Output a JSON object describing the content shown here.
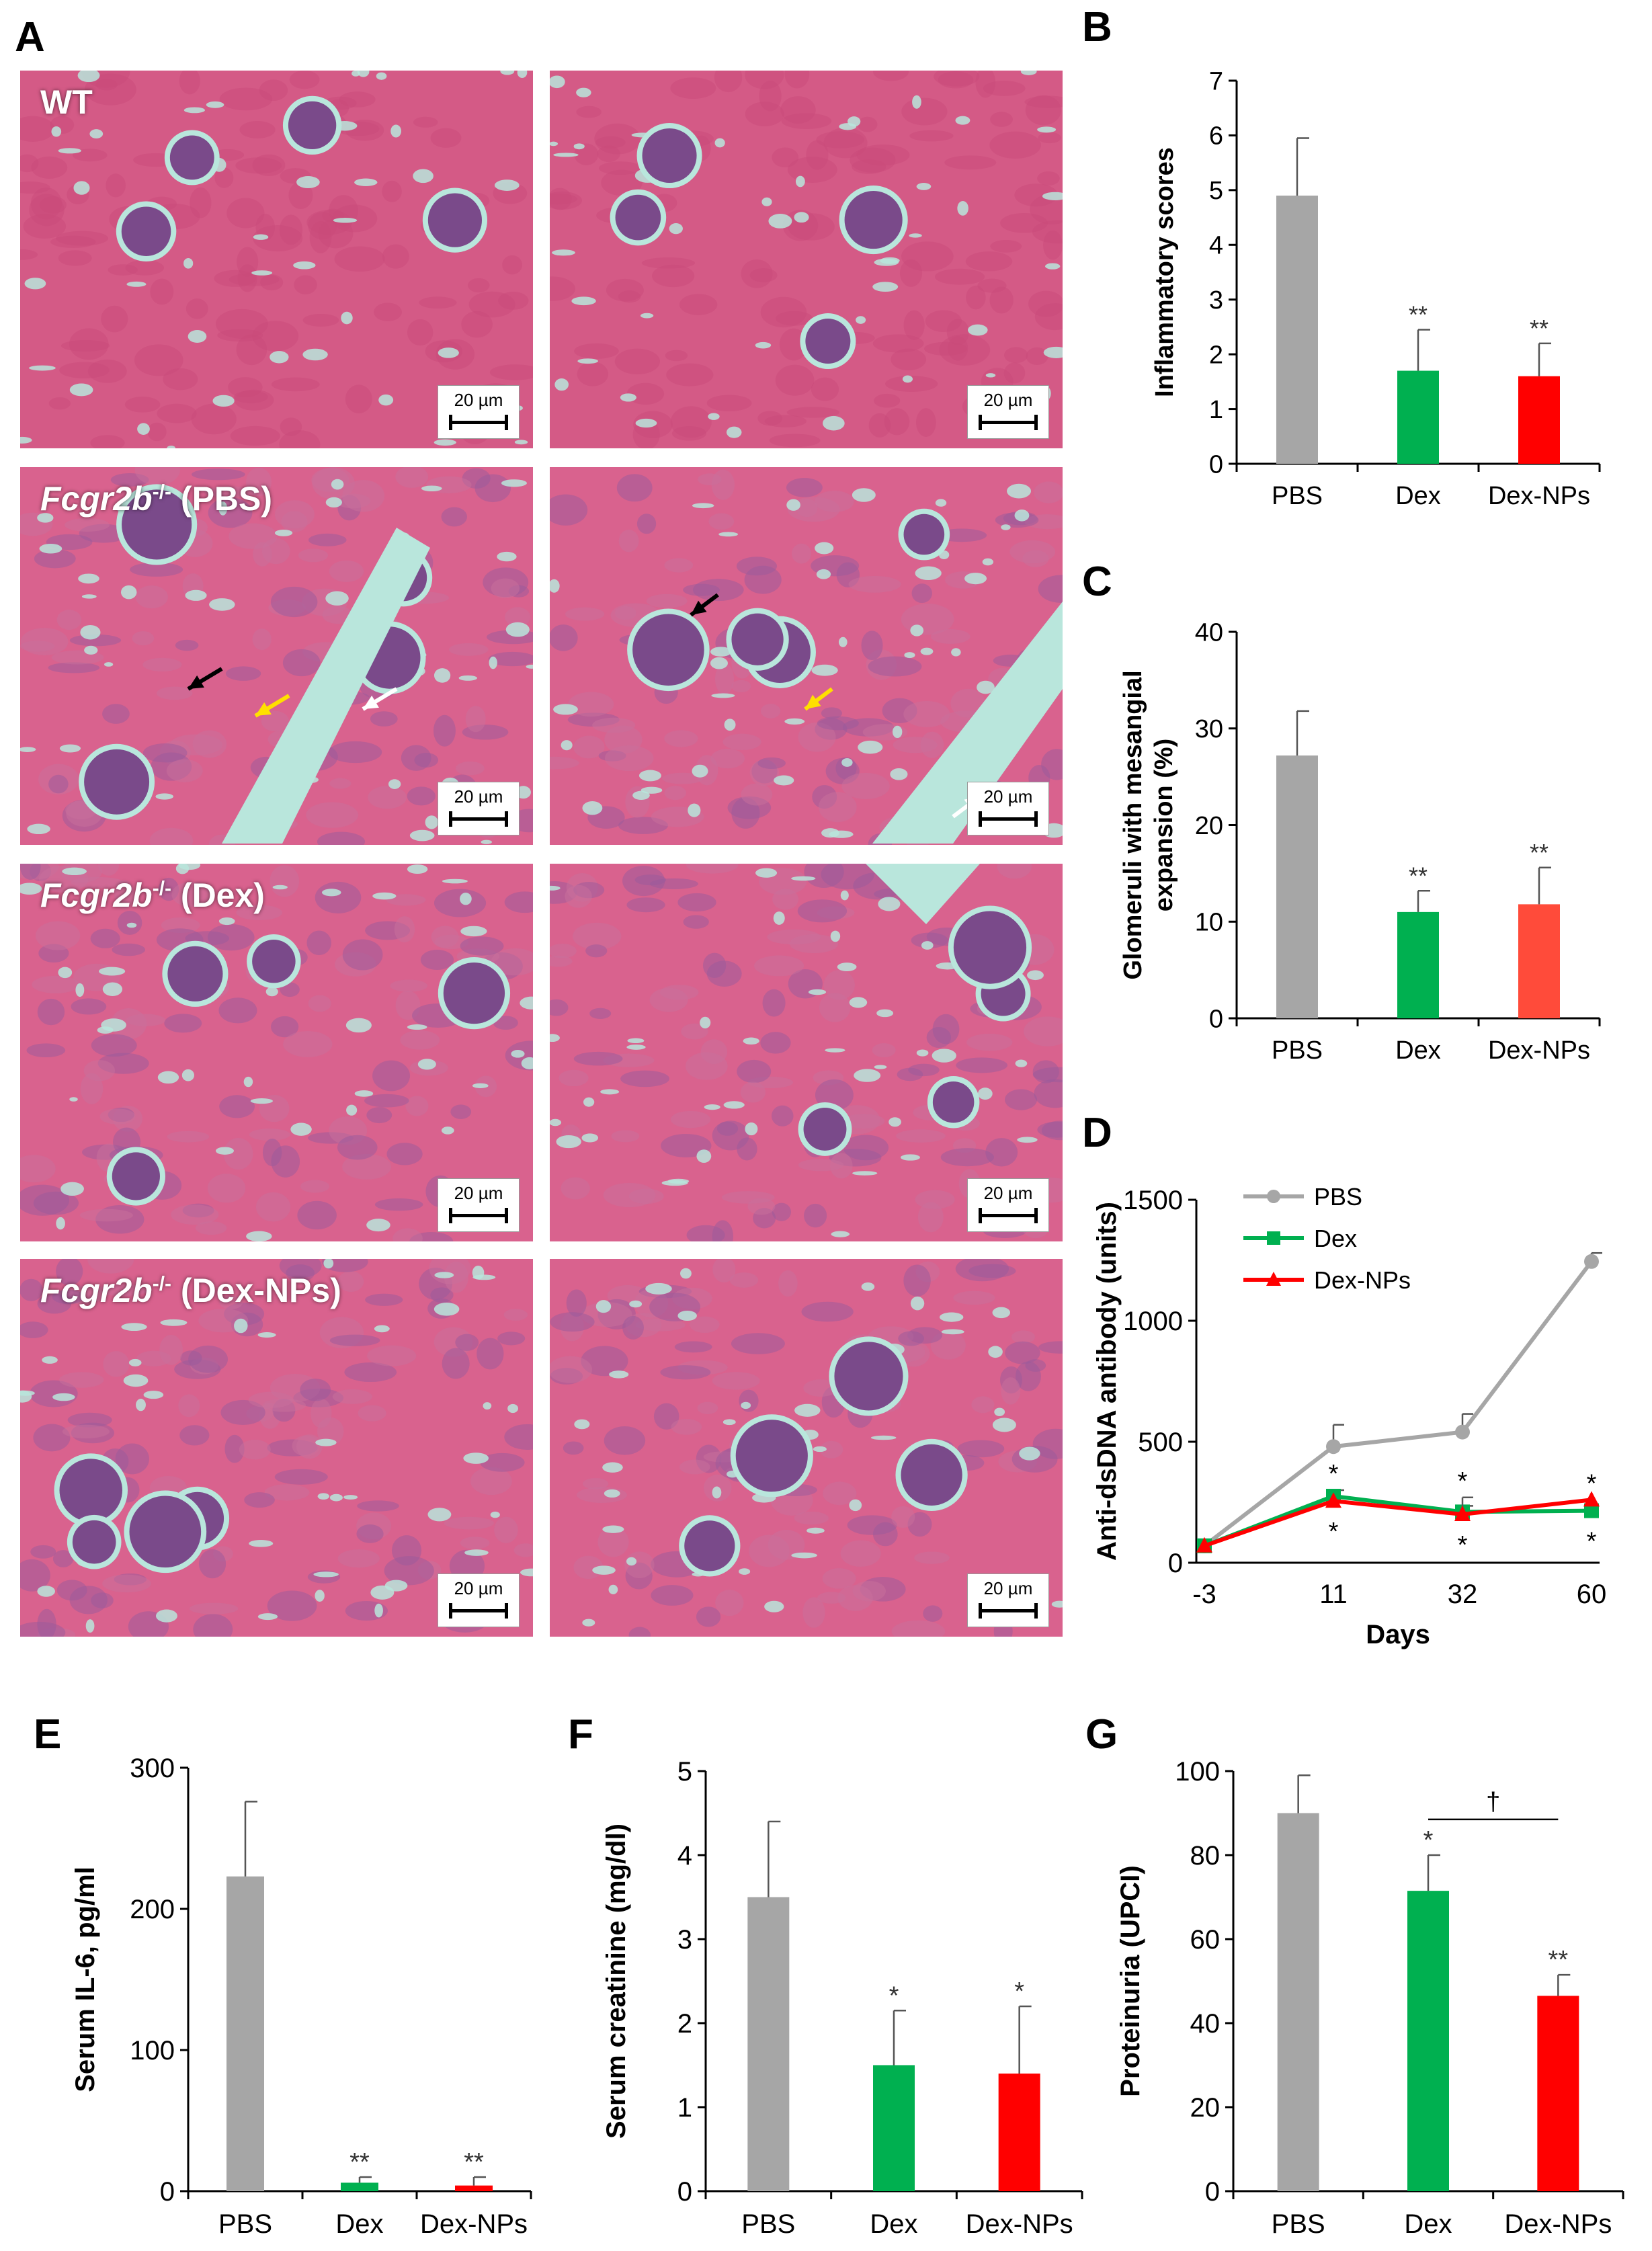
{
  "panel_labels": {
    "A": "A",
    "B": "B",
    "C": "C",
    "D": "D",
    "E": "E",
    "F": "F",
    "G": "G"
  },
  "histology": {
    "rows": [
      {
        "label_italic": "",
        "label_sup": "",
        "label_rest": "WT"
      },
      {
        "label_italic": "Fcgr2b",
        "label_sup": "-/-",
        "label_rest": " (PBS)"
      },
      {
        "label_italic": "Fcgr2b",
        "label_sup": "-/-",
        "label_rest": " (Dex)"
      },
      {
        "label_italic": "Fcgr2b",
        "label_sup": "-/-",
        "label_rest": " (Dex-NPs)"
      }
    ],
    "scale_bar": "20 µm",
    "arrow_colors": {
      "black": "#000000",
      "yellow": "#ffe000",
      "white": "#ffffff"
    },
    "stain_colors": {
      "pink": "#d9628e",
      "purple": "#9a5a9c",
      "lumen": "#b9e6dc"
    }
  },
  "colors": {
    "PBS": "#a6a6a6",
    "Dex": "#00b050",
    "DexNPs": "#ff0000",
    "DexNPs_C": "#ff4b3a"
  },
  "chart_data": [
    {
      "id": "B",
      "type": "bar",
      "categories": [
        "PBS",
        "Dex",
        "Dex-NPs"
      ],
      "values": [
        4.9,
        1.7,
        1.6
      ],
      "errors": [
        1.05,
        0.75,
        0.6
      ],
      "significance": [
        "",
        "**",
        "**"
      ],
      "ylabel": "Inflammatory scores",
      "ylim": [
        0,
        7
      ],
      "yticks": [
        "0",
        "1",
        "2",
        "3",
        "4",
        "5",
        "6",
        "7"
      ],
      "grid": false
    },
    {
      "id": "C",
      "type": "bar",
      "categories": [
        "PBS",
        "Dex",
        "Dex-NPs"
      ],
      "values": [
        27.2,
        11.0,
        11.8
      ],
      "errors": [
        4.6,
        2.2,
        3.8
      ],
      "significance": [
        "",
        "**",
        "**"
      ],
      "ylabel_lines": [
        "Glomeruli with mesangial",
        "expansion (%)"
      ],
      "ylim": [
        0,
        40
      ],
      "yticks": [
        "0",
        "10",
        "20",
        "30",
        "40"
      ],
      "grid": false
    },
    {
      "id": "D",
      "type": "line",
      "x": [
        "-3",
        "11",
        "32",
        "60"
      ],
      "series": [
        {
          "name": "PBS",
          "values": [
            70,
            480,
            540,
            1245
          ],
          "errors": [
            0,
            90,
            75,
            35
          ]
        },
        {
          "name": "Dex",
          "values": [
            70,
            275,
            210,
            215
          ],
          "errors": [
            0,
            25,
            25,
            0
          ]
        },
        {
          "name": "Dex-NPs",
          "values": [
            70,
            255,
            200,
            260
          ],
          "errors": [
            0,
            0,
            70,
            0
          ]
        }
      ],
      "significance_above": [
        "",
        "*",
        "*",
        "*"
      ],
      "significance_below": [
        "",
        "*",
        "*",
        "*"
      ],
      "xlabel": "Days",
      "ylabel": "Anti-dsDNA antibody (units)",
      "ylim": [
        0,
        1500
      ],
      "yticks": [
        "0",
        "500",
        "1000",
        "1500"
      ],
      "legend": "top-left",
      "grid": false
    },
    {
      "id": "E",
      "type": "bar",
      "categories": [
        "PBS",
        "Dex",
        "Dex-NPs"
      ],
      "values": [
        223,
        6,
        4
      ],
      "errors": [
        53,
        4,
        6
      ],
      "significance": [
        "",
        "**",
        "**"
      ],
      "ylabel": "Serum IL-6, pg/ml",
      "ylim": [
        0,
        300
      ],
      "yticks": [
        "0",
        "100",
        "200",
        "300"
      ],
      "grid": false
    },
    {
      "id": "F",
      "type": "bar",
      "categories": [
        "PBS",
        "Dex",
        "Dex-NPs"
      ],
      "values": [
        3.5,
        1.5,
        1.4
      ],
      "errors": [
        0.9,
        0.65,
        0.8
      ],
      "significance": [
        "",
        "*",
        "*"
      ],
      "ylabel": "Serum creatinine (mg/dl)",
      "ylim": [
        0,
        5
      ],
      "yticks": [
        "0",
        "1",
        "2",
        "3",
        "4",
        "5"
      ],
      "grid": false
    },
    {
      "id": "G",
      "type": "bar",
      "categories": [
        "PBS",
        "Dex",
        "Dex-NPs"
      ],
      "values": [
        90,
        71.5,
        46.5
      ],
      "errors": [
        9,
        8.5,
        5
      ],
      "significance": [
        "",
        "*",
        "**"
      ],
      "bracket": "†",
      "ylabel": "Proteinuria (UPCI)",
      "ylim": [
        0,
        100
      ],
      "yticks": [
        "0",
        "20",
        "40",
        "60",
        "80",
        "100"
      ],
      "grid": false
    }
  ]
}
